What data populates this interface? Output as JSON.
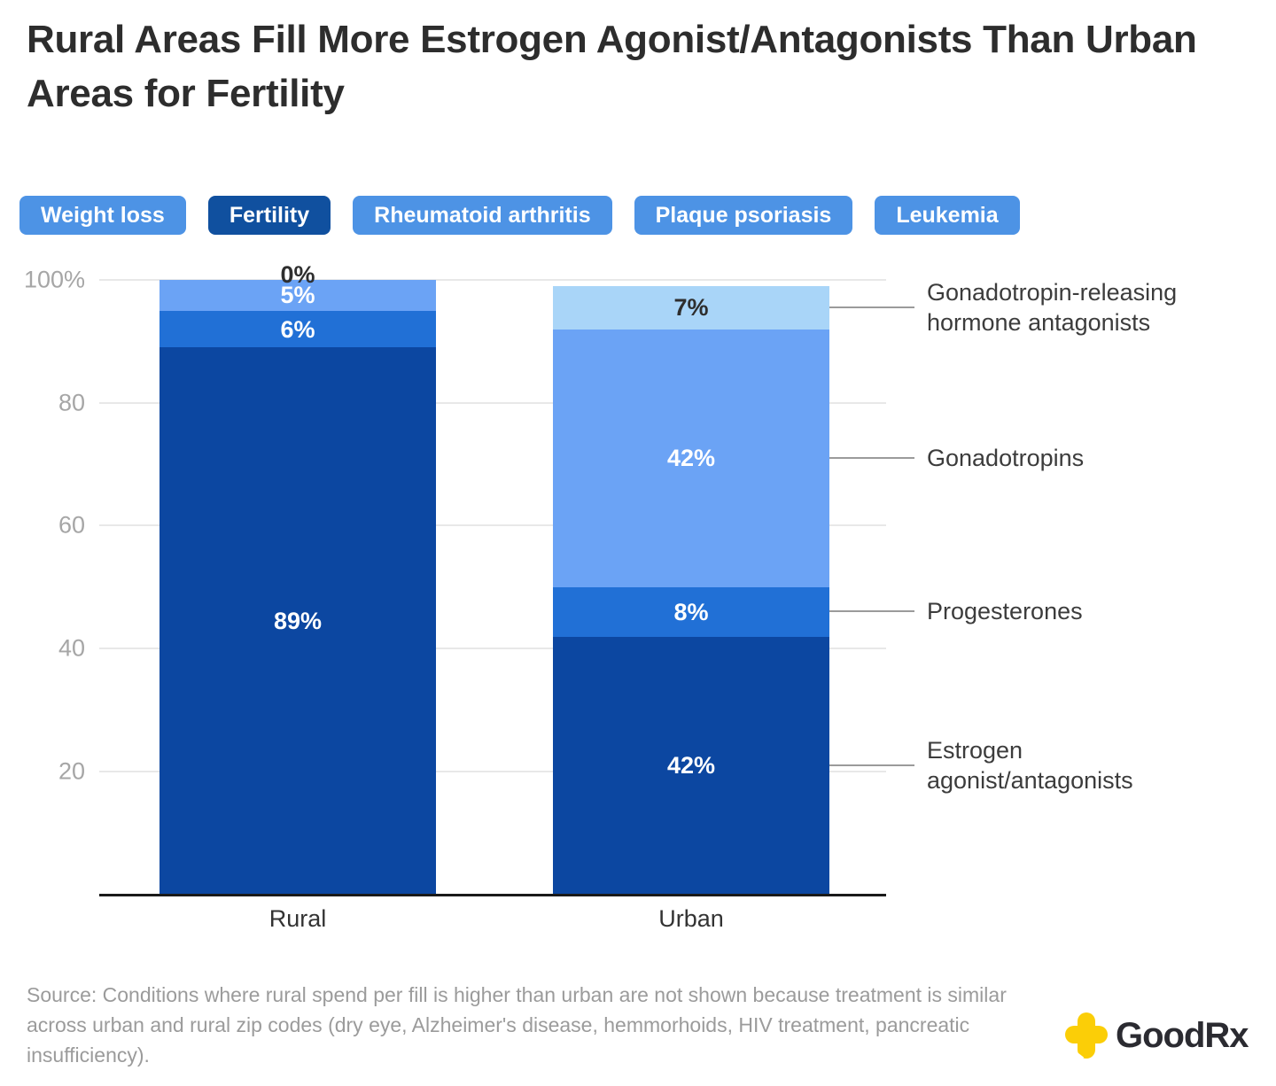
{
  "header": {
    "title": "Rural Areas Fill More Estrogen Agonist/Antagonists Than Urban Areas for Fertility"
  },
  "tabs": [
    {
      "label": "Weight loss",
      "active": false
    },
    {
      "label": "Fertility",
      "active": true
    },
    {
      "label": "Rheumatoid arthritis",
      "active": false
    },
    {
      "label": "Plaque psoriasis",
      "active": false
    },
    {
      "label": "Leukemia",
      "active": false
    }
  ],
  "chart_data": {
    "type": "bar",
    "stacked": true,
    "categories": [
      "Rural",
      "Urban"
    ],
    "series": [
      {
        "name": "Estrogen agonist/antagonists",
        "values": [
          89,
          42
        ],
        "value_labels": [
          "89%",
          "42%"
        ],
        "color": "#0c47a1"
      },
      {
        "name": "Progesterones",
        "values": [
          6,
          8
        ],
        "value_labels": [
          "6%",
          "8%"
        ],
        "color": "#2170d6"
      },
      {
        "name": "Gonadotropins",
        "values": [
          5,
          42
        ],
        "value_labels": [
          "5%",
          "42%"
        ],
        "color": "#6ba3f5"
      },
      {
        "name": "Gonadotropin-releasing hormone antagonists",
        "values": [
          0,
          7
        ],
        "value_labels": [
          "0%",
          "7%"
        ],
        "color": "#a9d5f8"
      }
    ],
    "ylim": [
      0,
      100
    ],
    "ytick_labels": [
      "100%",
      "80",
      "60",
      "40",
      "20"
    ],
    "grid": "horizontal",
    "legend_position": "right"
  },
  "footer": {
    "source": "Source: Conditions where rural spend per fill is higher than urban are not shown because treatment is similar across urban and rural zip codes (dry eye, Alzheimer's disease, hemmorhoids, HIV treatment, pancreatic insufficiency).",
    "logo_text": "GoodRx"
  },
  "colors": {
    "tab_active": "#10509f",
    "tab_inactive": "#4d93e5",
    "estrogen_agonist_antagonists": "#0c47a1",
    "progesterones": "#2170d6",
    "gonadotropins": "#6ba3f5",
    "gnrh_antagonists": "#a9d5f8",
    "logo_yellow": "#fbce07",
    "axis_line": "#1a1a1a",
    "gridline": "#e8e8e8"
  }
}
